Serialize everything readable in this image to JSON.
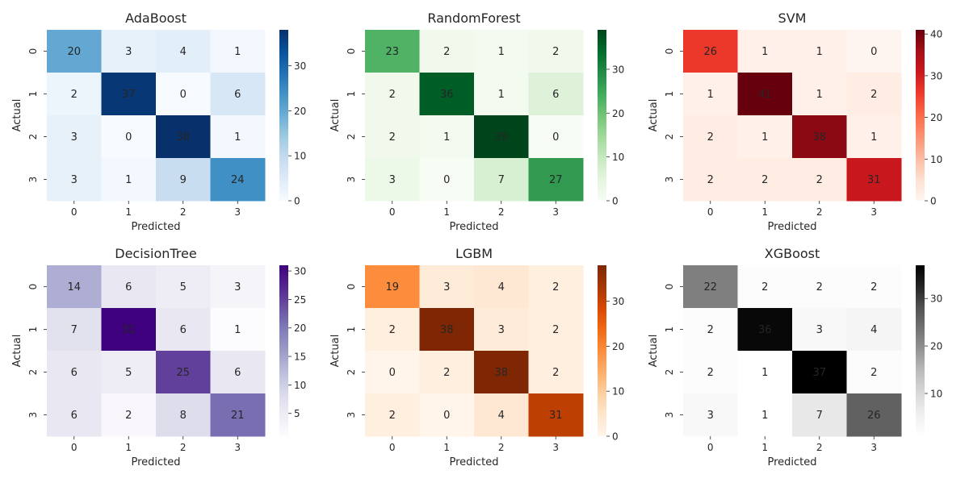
{
  "chart_data": [
    {
      "type": "heatmap",
      "title": "AdaBoost",
      "xlabel": "Predicted",
      "ylabel": "Actual",
      "x_ticks": [
        "0",
        "1",
        "2",
        "3"
      ],
      "y_ticks": [
        "0",
        "1",
        "2",
        "3"
      ],
      "colormap": "Blues",
      "colorbar_ticks": [
        0,
        10,
        20,
        30
      ],
      "vmin": 0,
      "vmax": 38,
      "values": [
        [
          20,
          3,
          4,
          1
        ],
        [
          2,
          37,
          0,
          6
        ],
        [
          3,
          0,
          38,
          1
        ],
        [
          3,
          1,
          9,
          24
        ]
      ]
    },
    {
      "type": "heatmap",
      "title": "RandomForest",
      "xlabel": "Predicted",
      "ylabel": "Actual",
      "x_ticks": [
        "0",
        "1",
        "2",
        "3"
      ],
      "y_ticks": [
        "0",
        "1",
        "2",
        "3"
      ],
      "colormap": "Greens",
      "colorbar_ticks": [
        0,
        10,
        20,
        30
      ],
      "vmin": 0,
      "vmax": 39,
      "values": [
        [
          23,
          2,
          1,
          2
        ],
        [
          2,
          36,
          1,
          6
        ],
        [
          2,
          1,
          39,
          0
        ],
        [
          3,
          0,
          7,
          27
        ]
      ]
    },
    {
      "type": "heatmap",
      "title": "SVM",
      "xlabel": "Predicted",
      "ylabel": "Actual",
      "x_ticks": [
        "0",
        "1",
        "2",
        "3"
      ],
      "y_ticks": [
        "0",
        "1",
        "2",
        "3"
      ],
      "colormap": "Reds",
      "colorbar_ticks": [
        0,
        10,
        20,
        30,
        40
      ],
      "vmin": 0,
      "vmax": 41,
      "values": [
        [
          26,
          1,
          1,
          0
        ],
        [
          1,
          41,
          1,
          2
        ],
        [
          2,
          1,
          38,
          1
        ],
        [
          2,
          2,
          2,
          31
        ]
      ]
    },
    {
      "type": "heatmap",
      "title": "DecisionTree",
      "xlabel": "Predicted",
      "ylabel": "Actual",
      "x_ticks": [
        "0",
        "1",
        "2",
        "3"
      ],
      "y_ticks": [
        "0",
        "1",
        "2",
        "3"
      ],
      "colormap": "Purples",
      "colorbar_ticks": [
        5,
        10,
        15,
        20,
        25,
        30
      ],
      "vmin": 1,
      "vmax": 31,
      "values": [
        [
          14,
          6,
          5,
          3
        ],
        [
          7,
          31,
          6,
          1
        ],
        [
          6,
          5,
          25,
          6
        ],
        [
          6,
          2,
          8,
          21
        ]
      ]
    },
    {
      "type": "heatmap",
      "title": "LGBM",
      "xlabel": "Predicted",
      "ylabel": "Actual",
      "x_ticks": [
        "0",
        "1",
        "2",
        "3"
      ],
      "y_ticks": [
        "0",
        "1",
        "2",
        "3"
      ],
      "colormap": "Oranges",
      "colorbar_ticks": [
        0,
        10,
        20,
        30
      ],
      "vmin": 0,
      "vmax": 38,
      "values": [
        [
          19,
          3,
          4,
          2
        ],
        [
          2,
          38,
          3,
          2
        ],
        [
          0,
          2,
          38,
          2
        ],
        [
          2,
          0,
          4,
          31
        ]
      ]
    },
    {
      "type": "heatmap",
      "title": "XGBoost",
      "xlabel": "Predicted",
      "ylabel": "Actual",
      "x_ticks": [
        "0",
        "1",
        "2",
        "3"
      ],
      "y_ticks": [
        "0",
        "1",
        "2",
        "3"
      ],
      "colormap": "Greys",
      "colorbar_ticks": [
        10,
        20,
        30
      ],
      "vmin": 1,
      "vmax": 37,
      "values": [
        [
          22,
          2,
          2,
          2
        ],
        [
          2,
          36,
          3,
          4
        ],
        [
          2,
          1,
          37,
          2
        ],
        [
          3,
          1,
          7,
          26
        ]
      ]
    }
  ],
  "colormaps": {
    "Blues": [
      "#f7fbff",
      "#deebf7",
      "#c6dbef",
      "#9ecae1",
      "#6baed6",
      "#4292c6",
      "#2171b5",
      "#08519c",
      "#08306b"
    ],
    "Greens": [
      "#f7fcf5",
      "#e5f5e0",
      "#c7e9c0",
      "#a1d99b",
      "#74c476",
      "#41ab5d",
      "#238b45",
      "#006d2c",
      "#00441b"
    ],
    "Reds": [
      "#fff5f0",
      "#fee0d2",
      "#fcbba1",
      "#fc9272",
      "#fb6a4a",
      "#ef3b2c",
      "#cb181d",
      "#a50f15",
      "#67000d"
    ],
    "Purples": [
      "#fcfbfd",
      "#efedf5",
      "#dadaeb",
      "#bcbddc",
      "#9e9ac8",
      "#807dba",
      "#6a51a3",
      "#54278f",
      "#3f007d"
    ],
    "Oranges": [
      "#fff5eb",
      "#fee6ce",
      "#fdd0a2",
      "#fdae6b",
      "#fd8d3c",
      "#f16913",
      "#d94801",
      "#a63603",
      "#7f2704"
    ],
    "Greys": [
      "#ffffff",
      "#f0f0f0",
      "#d9d9d9",
      "#bdbdbd",
      "#969696",
      "#737373",
      "#525252",
      "#252525",
      "#000000"
    ]
  }
}
